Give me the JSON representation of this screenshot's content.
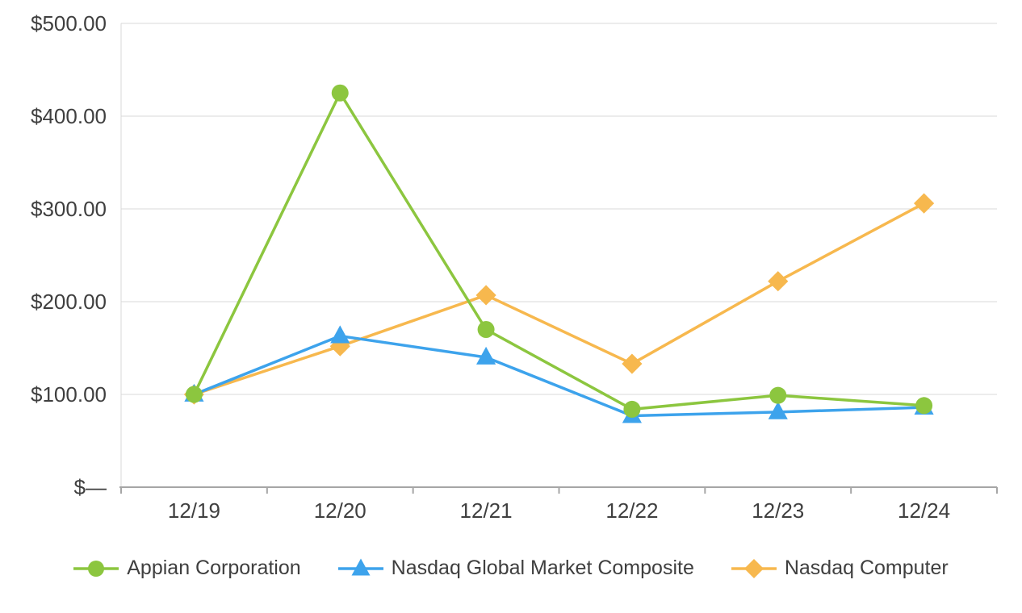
{
  "chart_data": {
    "type": "line",
    "title": "",
    "xlabel": "",
    "ylabel": "",
    "categories": [
      "12/19",
      "12/20",
      "12/21",
      "12/22",
      "12/23",
      "12/24"
    ],
    "y_ticks": [
      {
        "value": 0,
        "label": "$—"
      },
      {
        "value": 100,
        "label": "$100.00"
      },
      {
        "value": 200,
        "label": "$200.00"
      },
      {
        "value": 300,
        "label": "$300.00"
      },
      {
        "value": 400,
        "label": "$400.00"
      },
      {
        "value": 500,
        "label": "$500.00"
      }
    ],
    "ylim": [
      0,
      500
    ],
    "grid": "horizontal",
    "legend_position": "bottom",
    "series": [
      {
        "name": "Appian Corporation",
        "marker": "circle",
        "color": "#8CC63F",
        "values": [
          100,
          425,
          170,
          84,
          99,
          88
        ]
      },
      {
        "name": "Nasdaq Global Market Composite",
        "marker": "triangle",
        "color": "#3DA3EC",
        "values": [
          100,
          163,
          140,
          77,
          81,
          86
        ]
      },
      {
        "name": "Nasdaq Computer",
        "marker": "diamond",
        "color": "#F7B84E",
        "values": [
          100,
          152,
          207,
          133,
          222,
          306
        ]
      }
    ],
    "colors": {
      "grid": "#d9d9d9",
      "axis": "#a6a6a6",
      "text": "#3f3f3f"
    }
  },
  "legend": {
    "items": [
      {
        "label": "Appian Corporation"
      },
      {
        "label": "Nasdaq Global Market Composite"
      },
      {
        "label": "Nasdaq Computer"
      }
    ]
  }
}
